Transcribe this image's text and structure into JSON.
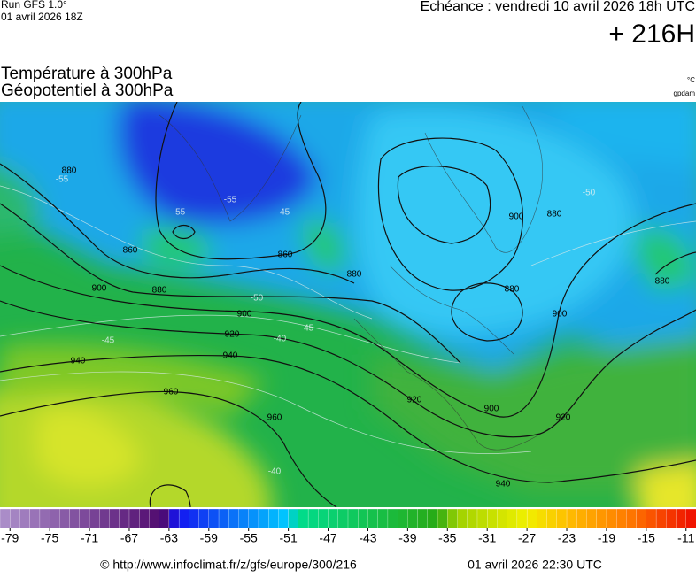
{
  "header": {
    "run": "Run GFS 1.0°",
    "run_date": "01 avril 2026 18Z",
    "echeance": "Echéance : vendredi 10 avril 2026 18h UTC",
    "lead": "+ 216H",
    "title_1": "Température à 300hPa",
    "title_2": "Géopotentiel à 300hPa",
    "unit_temp": "°C",
    "unit_geo": "gpdam"
  },
  "map": {
    "contour_labels": [
      880,
      860,
      880,
      900,
      860,
      880,
      900,
      920,
      940,
      940,
      960,
      960,
      920,
      940,
      900,
      920,
      900,
      880,
      880,
      880,
      900
    ],
    "isotherm_labels": [
      -55,
      -55,
      -50,
      -45,
      -50,
      -45,
      -40,
      -45,
      -55,
      -40
    ]
  },
  "colorbar": {
    "lim": [
      -80,
      -10
    ],
    "ticks": [
      -79,
      -75,
      -71,
      -67,
      -63,
      -59,
      -55,
      -51,
      -47,
      -43,
      -39,
      -35,
      -31,
      -27,
      -23,
      -19,
      -15,
      -11
    ]
  },
  "footer": {
    "source": "© http://www.infoclimat.fr/z/gfs/europe/300/216",
    "date": "01 avril 2026 22:30 UTC"
  }
}
